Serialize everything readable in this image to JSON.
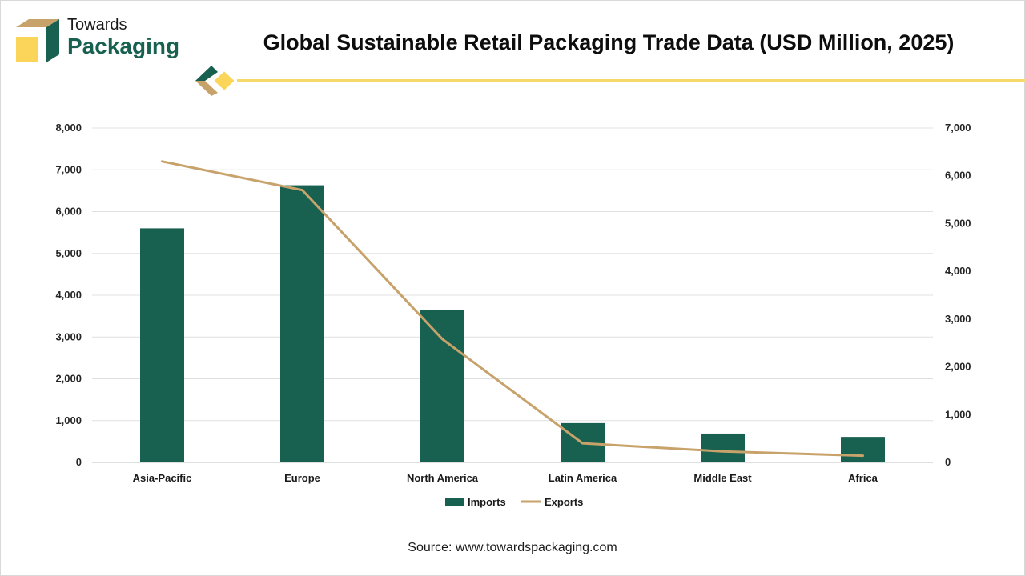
{
  "header": {
    "brand_line1": "Towards",
    "brand_line2": "Packaging",
    "title": "Global Sustainable Retail Packaging Trade Data (USD Million, 2025)"
  },
  "footer": {
    "source": "Source: www.towardspackaging.com"
  },
  "colors": {
    "imports": "#186150",
    "exports": "#c8a26b",
    "accent_line": "#f5d96a",
    "brand_gold": "#fad55a",
    "brand_tan": "#c8a26b",
    "brand_green": "#186150"
  },
  "chart_data": {
    "type": "bar",
    "title": "Global Sustainable Retail Packaging Trade Data (USD Million, 2025)",
    "categories": [
      "Asia-Pacific",
      "Europe",
      "North America",
      "Latin America",
      "Middle East",
      "Africa"
    ],
    "series": [
      {
        "name": "Imports",
        "type": "bar",
        "axis": "left",
        "values": [
          5600,
          6630,
          3650,
          940,
          690,
          610
        ]
      },
      {
        "name": "Exports",
        "type": "line",
        "axis": "right",
        "values": [
          6300,
          5700,
          2580,
          400,
          230,
          140
        ]
      }
    ],
    "y_left": {
      "min": 0,
      "max": 8000,
      "step": 1000,
      "tick_labels": [
        "0",
        "1,000",
        "2,000",
        "3,000",
        "4,000",
        "5,000",
        "6,000",
        "7,000",
        "8,000"
      ]
    },
    "y_right": {
      "min": 0,
      "max": 7000,
      "step": 1000,
      "tick_labels": [
        "0",
        "1,000",
        "2,000",
        "3,000",
        "4,000",
        "5,000",
        "6,000",
        "7,000"
      ]
    },
    "grid": true,
    "legend": {
      "position": "bottom",
      "items": [
        "Imports",
        "Exports"
      ]
    }
  }
}
